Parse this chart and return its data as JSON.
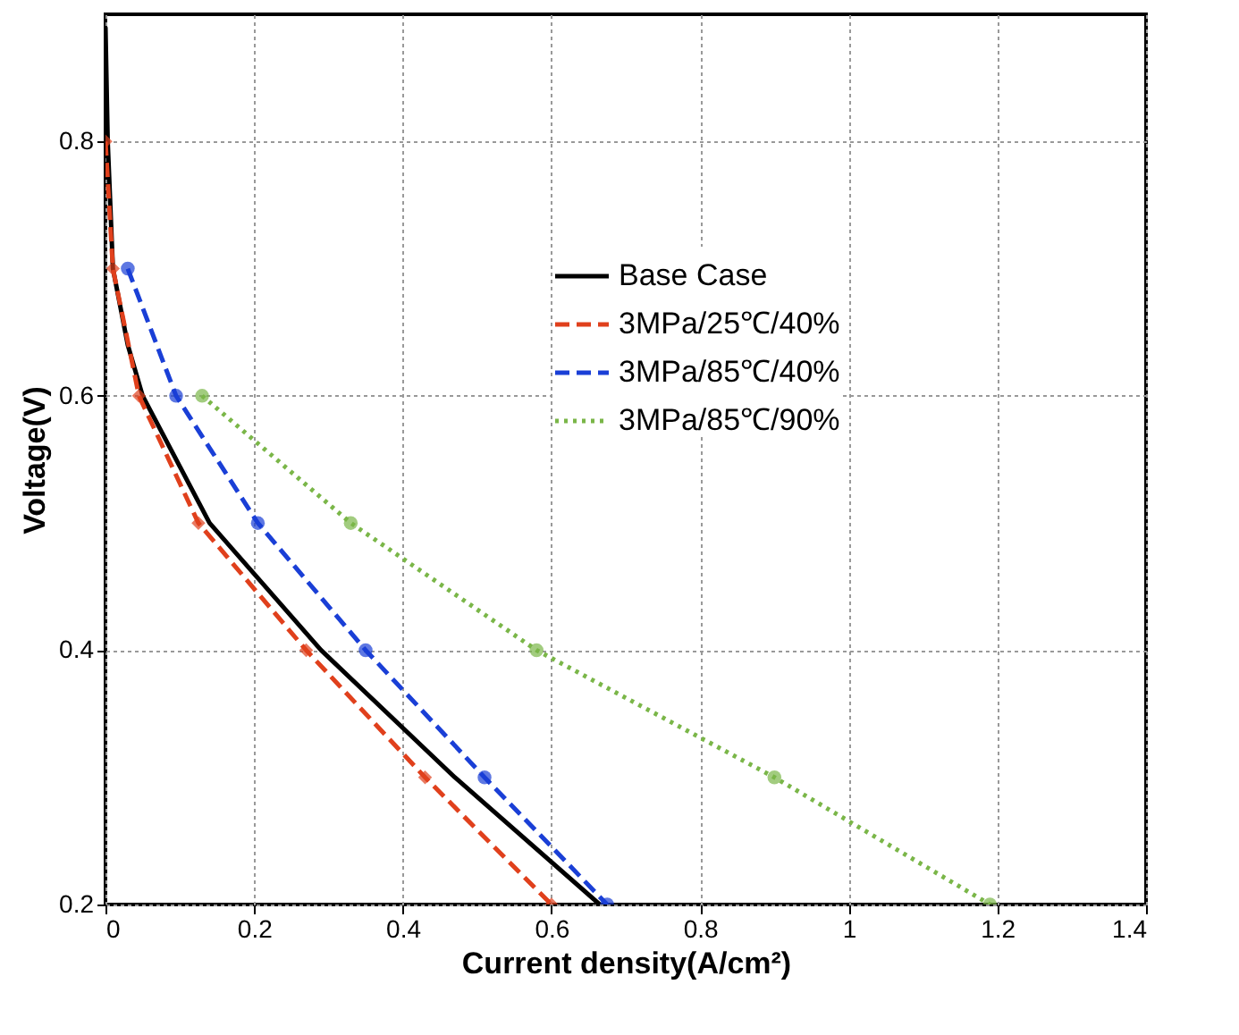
{
  "chart_data": {
    "type": "line",
    "xlabel": "Current density(A/cm²)",
    "ylabel": "Voltage(V)",
    "xlim": [
      0,
      1.4
    ],
    "ylim": [
      0.2,
      0.9
    ],
    "xticks": [
      0,
      0.2,
      0.4,
      0.6,
      0.8,
      1,
      1.2,
      1.4
    ],
    "yticks": [
      0.2,
      0.4,
      0.6,
      0.8
    ],
    "grid": true,
    "legend": "top right",
    "series": [
      {
        "name": "Base Case",
        "color": "#000000",
        "line_style": "solid",
        "marker": "none",
        "x": [
          0,
          0.003,
          0.01,
          0.03,
          0.05,
          0.14,
          0.29,
          0.47,
          0.665
        ],
        "values": [
          0.89,
          0.8,
          0.7,
          0.64,
          0.6,
          0.5,
          0.4,
          0.3,
          0.2
        ]
      },
      {
        "name": "3MPa/25℃/40%",
        "color": "#e0401c",
        "line_style": "dashed",
        "marker": "diamond",
        "x": [
          0,
          0.01,
          0.045,
          0.125,
          0.27,
          0.43,
          0.6
        ],
        "values": [
          0.8,
          0.7,
          0.6,
          0.5,
          0.4,
          0.3,
          0.2
        ]
      },
      {
        "name": "3MPa/85℃/40%",
        "color": "#1a3fd6",
        "line_style": "dashed",
        "marker": "circle",
        "x": [
          0.03,
          0.095,
          0.205,
          0.35,
          0.51,
          0.675
        ],
        "values": [
          0.7,
          0.6,
          0.5,
          0.4,
          0.3,
          0.2
        ]
      },
      {
        "name": "3MPa/85℃/90%",
        "color": "#7ab648",
        "line_style": "dotted",
        "marker": "circle",
        "x": [
          0.13,
          0.33,
          0.58,
          0.9,
          1.19
        ],
        "values": [
          0.6,
          0.5,
          0.4,
          0.3,
          0.2
        ]
      }
    ]
  }
}
